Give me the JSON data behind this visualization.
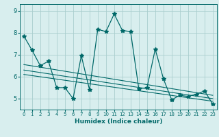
{
  "xlabel": "Humidex (Indice chaleur)",
  "background_color": "#d8eeee",
  "grid_color": "#aacece",
  "line_color": "#006868",
  "xlim": [
    -0.5,
    23.5
  ],
  "ylim": [
    4.5,
    9.3
  ],
  "xticks": [
    0,
    1,
    2,
    3,
    4,
    5,
    6,
    7,
    8,
    9,
    10,
    11,
    12,
    13,
    14,
    15,
    16,
    17,
    18,
    19,
    20,
    21,
    22,
    23
  ],
  "yticks": [
    5,
    6,
    7,
    8,
    9
  ],
  "series1_x": [
    0,
    1,
    2,
    3,
    4,
    5,
    6,
    7,
    8,
    9,
    10,
    11,
    12,
    13,
    14,
    15,
    16,
    17,
    18,
    19,
    20,
    21,
    22,
    23
  ],
  "series1_y": [
    7.85,
    7.2,
    6.5,
    6.7,
    5.5,
    5.5,
    5.0,
    6.95,
    5.4,
    8.15,
    8.05,
    8.85,
    8.1,
    8.05,
    5.45,
    5.5,
    7.25,
    5.9,
    4.95,
    5.15,
    5.1,
    5.2,
    5.35,
    4.75
  ],
  "trend1_x": [
    0,
    23
  ],
  "trend1_y": [
    6.55,
    5.15
  ],
  "trend2_x": [
    0,
    23
  ],
  "trend2_y": [
    6.3,
    5.0
  ],
  "trend3_x": [
    0,
    23
  ],
  "trend3_y": [
    6.1,
    4.88
  ]
}
